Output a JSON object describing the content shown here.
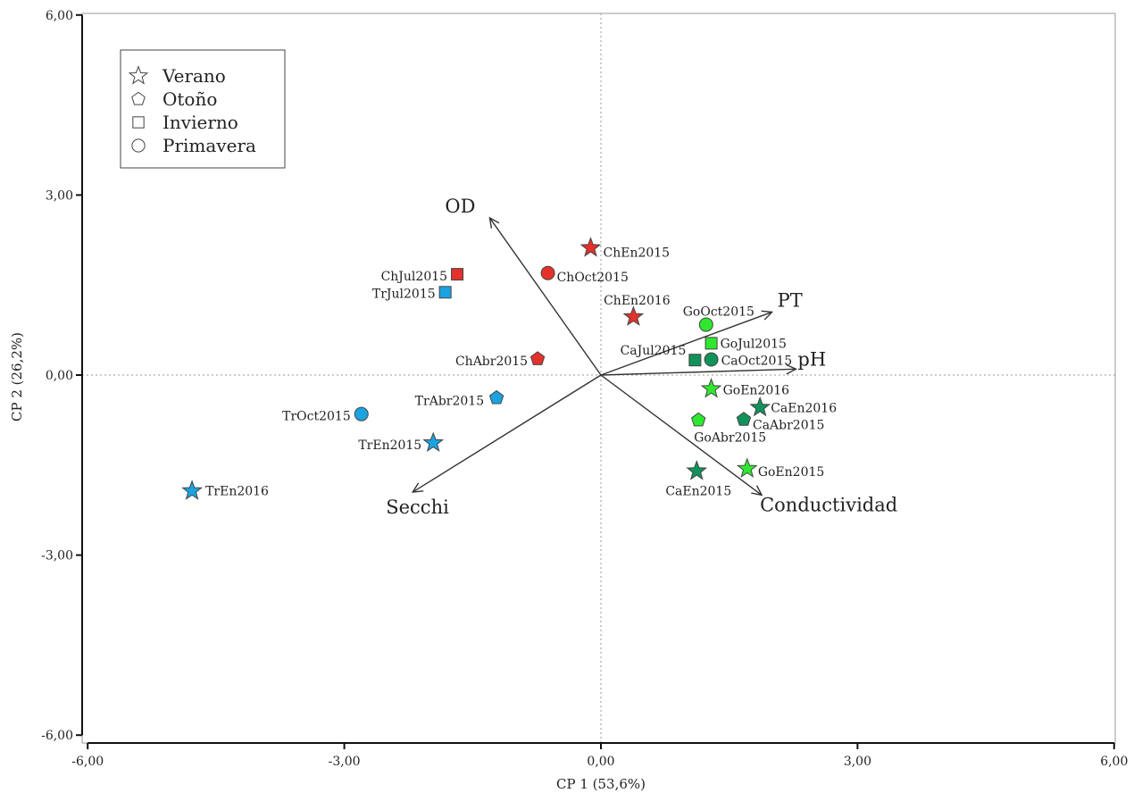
{
  "chart_data": {
    "type": "scatter",
    "xlabel": "CP 1 (53,6%)",
    "ylabel": "CP 2 (26,2%)",
    "xlim": [
      -6,
      6
    ],
    "ylim": [
      -6,
      6
    ],
    "x_ticks": [
      "-6,00",
      "-3,00",
      "0,00",
      "3,00",
      "6,00"
    ],
    "y_ticks": [
      "-6,00",
      "-3,00",
      "0,00",
      "3,00",
      "6,00"
    ],
    "x_tick_values": [
      -6,
      -3,
      0,
      3,
      6
    ],
    "y_tick_values": [
      -6,
      -3,
      0,
      3,
      6
    ],
    "reference_lines": {
      "x": 0,
      "y": 0,
      "style": "dotted"
    },
    "grid": false,
    "legend": {
      "position": "top-left",
      "entries": [
        {
          "label": "Verano",
          "shape": "star"
        },
        {
          "label": "Otoño",
          "shape": "pentagon"
        },
        {
          "label": "Invierno",
          "shape": "square"
        },
        {
          "label": "Primavera",
          "shape": "circle"
        }
      ]
    },
    "site_colors": {
      "Ch": "#e4312b",
      "Tr": "#1aa3e0",
      "Go": "#2ee82e",
      "Ca": "#11925a"
    },
    "points": [
      {
        "label": "ChEn2015",
        "x": -0.12,
        "y": 2.12,
        "shape": "star",
        "site": "Ch"
      },
      {
        "label": "ChOct2015",
        "x": -0.62,
        "y": 1.7,
        "shape": "circle",
        "site": "Ch"
      },
      {
        "label": "ChJul2015",
        "x": -1.68,
        "y": 1.68,
        "shape": "square",
        "site": "Ch"
      },
      {
        "label": "ChEn2016",
        "x": 0.38,
        "y": 0.97,
        "shape": "star",
        "site": "Ch"
      },
      {
        "label": "ChAbr2015",
        "x": -0.74,
        "y": 0.27,
        "shape": "pentagon",
        "site": "Ch"
      },
      {
        "label": "TrJul2015",
        "x": -1.82,
        "y": 1.38,
        "shape": "square",
        "site": "Tr"
      },
      {
        "label": "TrAbr2015",
        "x": -1.22,
        "y": -0.38,
        "shape": "pentagon",
        "site": "Tr"
      },
      {
        "label": "TrOct2015",
        "x": -2.8,
        "y": -0.65,
        "shape": "circle",
        "site": "Tr"
      },
      {
        "label": "TrEn2015",
        "x": -1.96,
        "y": -1.13,
        "shape": "star",
        "site": "Tr"
      },
      {
        "label": "TrEn2016",
        "x": -4.78,
        "y": -1.93,
        "shape": "star",
        "site": "Tr"
      },
      {
        "label": "GoOct2015",
        "x": 1.23,
        "y": 0.84,
        "shape": "circle",
        "site": "Go"
      },
      {
        "label": "GoJul2015",
        "x": 1.29,
        "y": 0.53,
        "shape": "square",
        "site": "Go"
      },
      {
        "label": "GoEn2016",
        "x": 1.29,
        "y": -0.23,
        "shape": "star",
        "site": "Go"
      },
      {
        "label": "GoAbr2015",
        "x": 1.14,
        "y": -0.75,
        "shape": "pentagon",
        "site": "Go"
      },
      {
        "label": "GoEn2015",
        "x": 1.71,
        "y": -1.56,
        "shape": "star",
        "site": "Go"
      },
      {
        "label": "CaJul2015",
        "x": 1.1,
        "y": 0.25,
        "shape": "square",
        "site": "Ca"
      },
      {
        "label": "CaOct2015",
        "x": 1.29,
        "y": 0.26,
        "shape": "circle",
        "site": "Ca"
      },
      {
        "label": "CaEn2016",
        "x": 1.86,
        "y": -0.54,
        "shape": "star",
        "site": "Ca"
      },
      {
        "label": "CaAbr2015",
        "x": 1.67,
        "y": -0.74,
        "shape": "pentagon",
        "site": "Ca"
      },
      {
        "label": "CaEn2015",
        "x": 1.12,
        "y": -1.6,
        "shape": "star",
        "site": "Ca"
      }
    ],
    "vectors": [
      {
        "label": "OD",
        "x": -1.3,
        "y": 2.62
      },
      {
        "label": "PT",
        "x": 2.0,
        "y": 1.05
      },
      {
        "label": "pH",
        "x": 2.28,
        "y": 0.1
      },
      {
        "label": "Secchi",
        "x": -2.2,
        "y": -1.95
      },
      {
        "label": "Conductividad",
        "x": 1.88,
        "y": -2.0
      }
    ]
  }
}
